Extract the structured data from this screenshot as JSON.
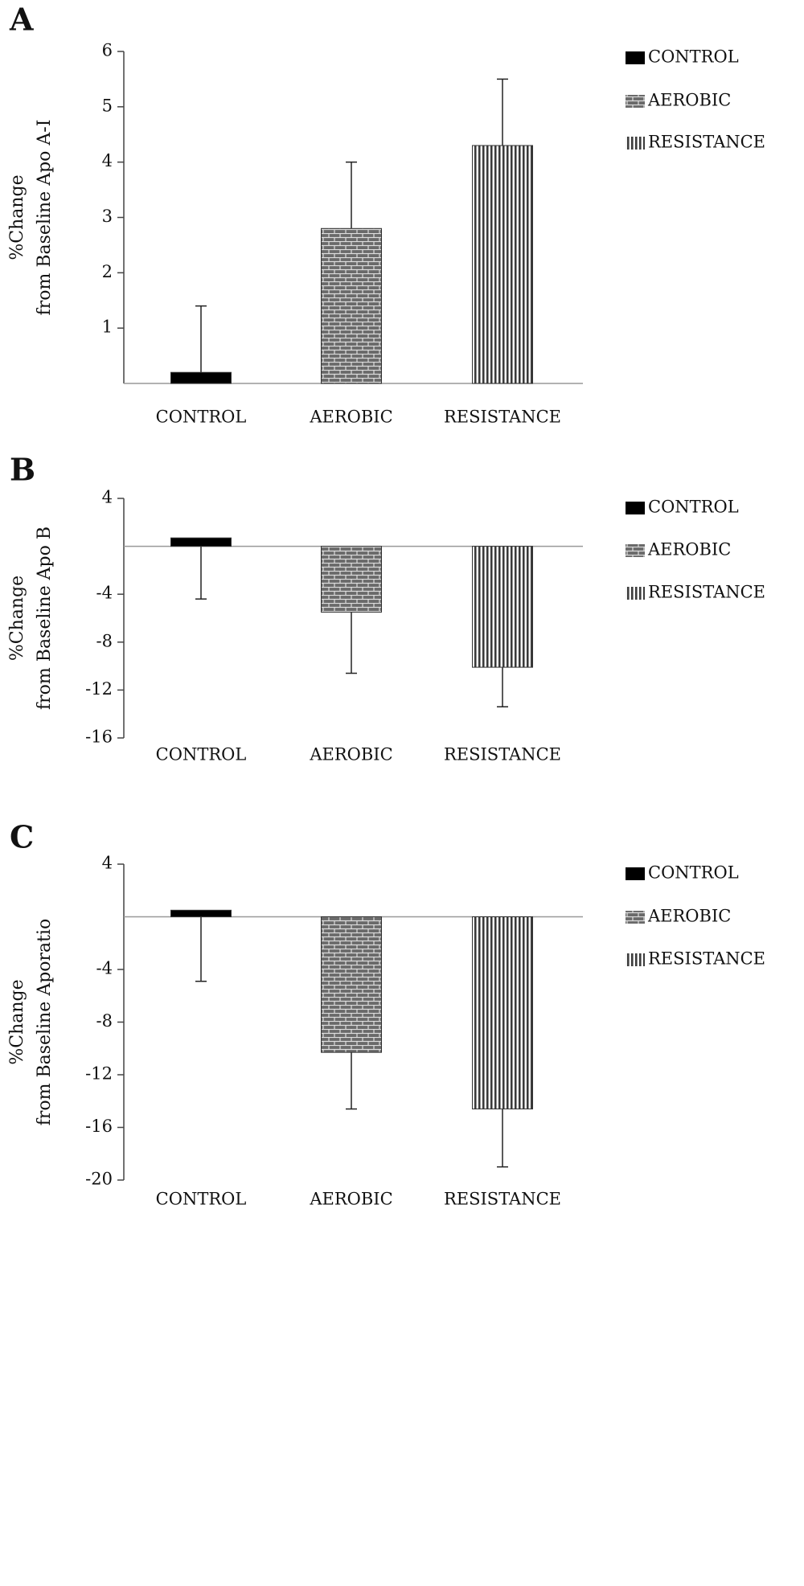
{
  "chart_data": [
    {
      "type": "bar",
      "label": "A",
      "ylabel": [
        "%Change",
        "from Baseline Apo A-I"
      ],
      "categories": [
        "CONTROL",
        "AEROBIC",
        "RESISTANCE"
      ],
      "values": [
        0.2,
        2.8,
        4.3
      ],
      "errors": [
        1.2,
        1.2,
        1.2
      ],
      "error_direction": "up",
      "fills": [
        "solid",
        "brick",
        "stripes"
      ],
      "color": "#000000",
      "ylim": [
        0,
        6
      ],
      "yticks": [
        1,
        2,
        3,
        4,
        5,
        6
      ],
      "legend": "right"
    },
    {
      "type": "bar",
      "label": "B",
      "ylabel": [
        "%Change",
        "from Baseline Apo B"
      ],
      "categories": [
        "CONTROL",
        "AEROBIC",
        "RESISTANCE"
      ],
      "values": [
        0.7,
        -5.5,
        -10.1
      ],
      "errors": [
        5.1,
        5.1,
        3.3
      ],
      "error_direction": "down",
      "fills": [
        "solid",
        "brick",
        "stripes"
      ],
      "color": "#000000",
      "ylim": [
        -16,
        4
      ],
      "yticks": [
        4,
        -4,
        -8,
        -12,
        -16
      ],
      "legend": "right"
    },
    {
      "type": "bar",
      "label": "C",
      "ylabel": [
        "%Change",
        "from Baseline Aporatio"
      ],
      "categories": [
        "CONTROL",
        "AEROBIC",
        "RESISTANCE"
      ],
      "values": [
        0.5,
        -10.3,
        -14.6
      ],
      "errors": [
        5.4,
        4.3,
        4.4
      ],
      "error_direction": "down",
      "fills": [
        "solid",
        "brick",
        "stripes"
      ],
      "color": "#000000",
      "ylim": [
        -20,
        4
      ],
      "yticks": [
        4,
        -4,
        -8,
        -12,
        -16,
        -20
      ],
      "legend": "right"
    }
  ]
}
